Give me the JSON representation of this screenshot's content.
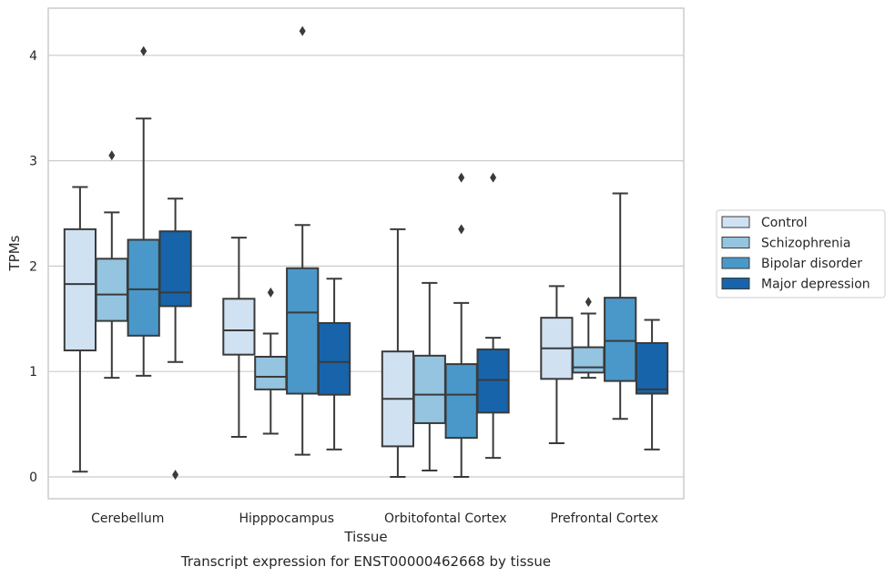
{
  "chart_data": {
    "type": "box",
    "caption": "Transcript expression for ENST00000462668 by tissue",
    "xlabel": "Tissue",
    "ylabel": "TPMs",
    "ylim": [
      -0.2,
      4.45
    ],
    "yticks": [
      0,
      1,
      2,
      3,
      4
    ],
    "grid": "horizontal",
    "legend_position": "right",
    "categories": [
      "Cerebellum",
      "Hipppocampus",
      "Orbitofontal Cortex",
      "Prefrontal Cortex"
    ],
    "series": [
      {
        "name": "Control",
        "color": "#d0e1f2",
        "boxes": [
          {
            "whislo": 0.05,
            "q1": 1.2,
            "med": 1.83,
            "q3": 2.35,
            "whishi": 2.75,
            "fliers": []
          },
          {
            "whislo": 0.38,
            "q1": 1.16,
            "med": 1.39,
            "q3": 1.69,
            "whishi": 2.27,
            "fliers": []
          },
          {
            "whislo": 0.0,
            "q1": 0.29,
            "med": 0.74,
            "q3": 1.19,
            "whishi": 2.35,
            "fliers": []
          },
          {
            "whislo": 0.32,
            "q1": 0.93,
            "med": 1.22,
            "q3": 1.51,
            "whishi": 1.81,
            "fliers": []
          }
        ]
      },
      {
        "name": "Schizophrenia",
        "color": "#94c4df",
        "boxes": [
          {
            "whislo": 0.94,
            "q1": 1.48,
            "med": 1.73,
            "q3": 2.07,
            "whishi": 2.51,
            "fliers": [
              3.05
            ]
          },
          {
            "whislo": 0.41,
            "q1": 0.83,
            "med": 0.95,
            "q3": 1.14,
            "whishi": 1.36,
            "fliers": [
              1.75
            ]
          },
          {
            "whislo": 0.06,
            "q1": 0.51,
            "med": 0.78,
            "q3": 1.15,
            "whishi": 1.84,
            "fliers": []
          },
          {
            "whislo": 0.94,
            "q1": 0.99,
            "med": 1.04,
            "q3": 1.23,
            "whishi": 1.55,
            "fliers": [
              1.66
            ]
          }
        ]
      },
      {
        "name": "Bipolar disorder",
        "color": "#4a98c9",
        "boxes": [
          {
            "whislo": 0.96,
            "q1": 1.34,
            "med": 1.78,
            "q3": 2.25,
            "whishi": 3.4,
            "fliers": [
              4.04
            ]
          },
          {
            "whislo": 0.21,
            "q1": 0.79,
            "med": 1.56,
            "q3": 1.98,
            "whishi": 2.39,
            "fliers": [
              4.23
            ]
          },
          {
            "whislo": 0.0,
            "q1": 0.37,
            "med": 0.78,
            "q3": 1.07,
            "whishi": 1.65,
            "fliers": [
              2.35,
              2.84
            ]
          },
          {
            "whislo": 0.55,
            "q1": 0.91,
            "med": 1.29,
            "q3": 1.7,
            "whishi": 2.69,
            "fliers": []
          }
        ]
      },
      {
        "name": "Major depression",
        "color": "#1764ab",
        "boxes": [
          {
            "whislo": 1.09,
            "q1": 1.62,
            "med": 1.75,
            "q3": 2.33,
            "whishi": 2.64,
            "fliers": [
              0.02
            ]
          },
          {
            "whislo": 0.26,
            "q1": 0.78,
            "med": 1.09,
            "q3": 1.46,
            "whishi": 1.88,
            "fliers": []
          },
          {
            "whislo": 0.18,
            "q1": 0.61,
            "med": 0.92,
            "q3": 1.21,
            "whishi": 1.32,
            "fliers": [
              2.84
            ]
          },
          {
            "whislo": 0.26,
            "q1": 0.79,
            "med": 0.83,
            "q3": 1.27,
            "whishi": 1.49,
            "fliers": []
          }
        ]
      }
    ]
  }
}
